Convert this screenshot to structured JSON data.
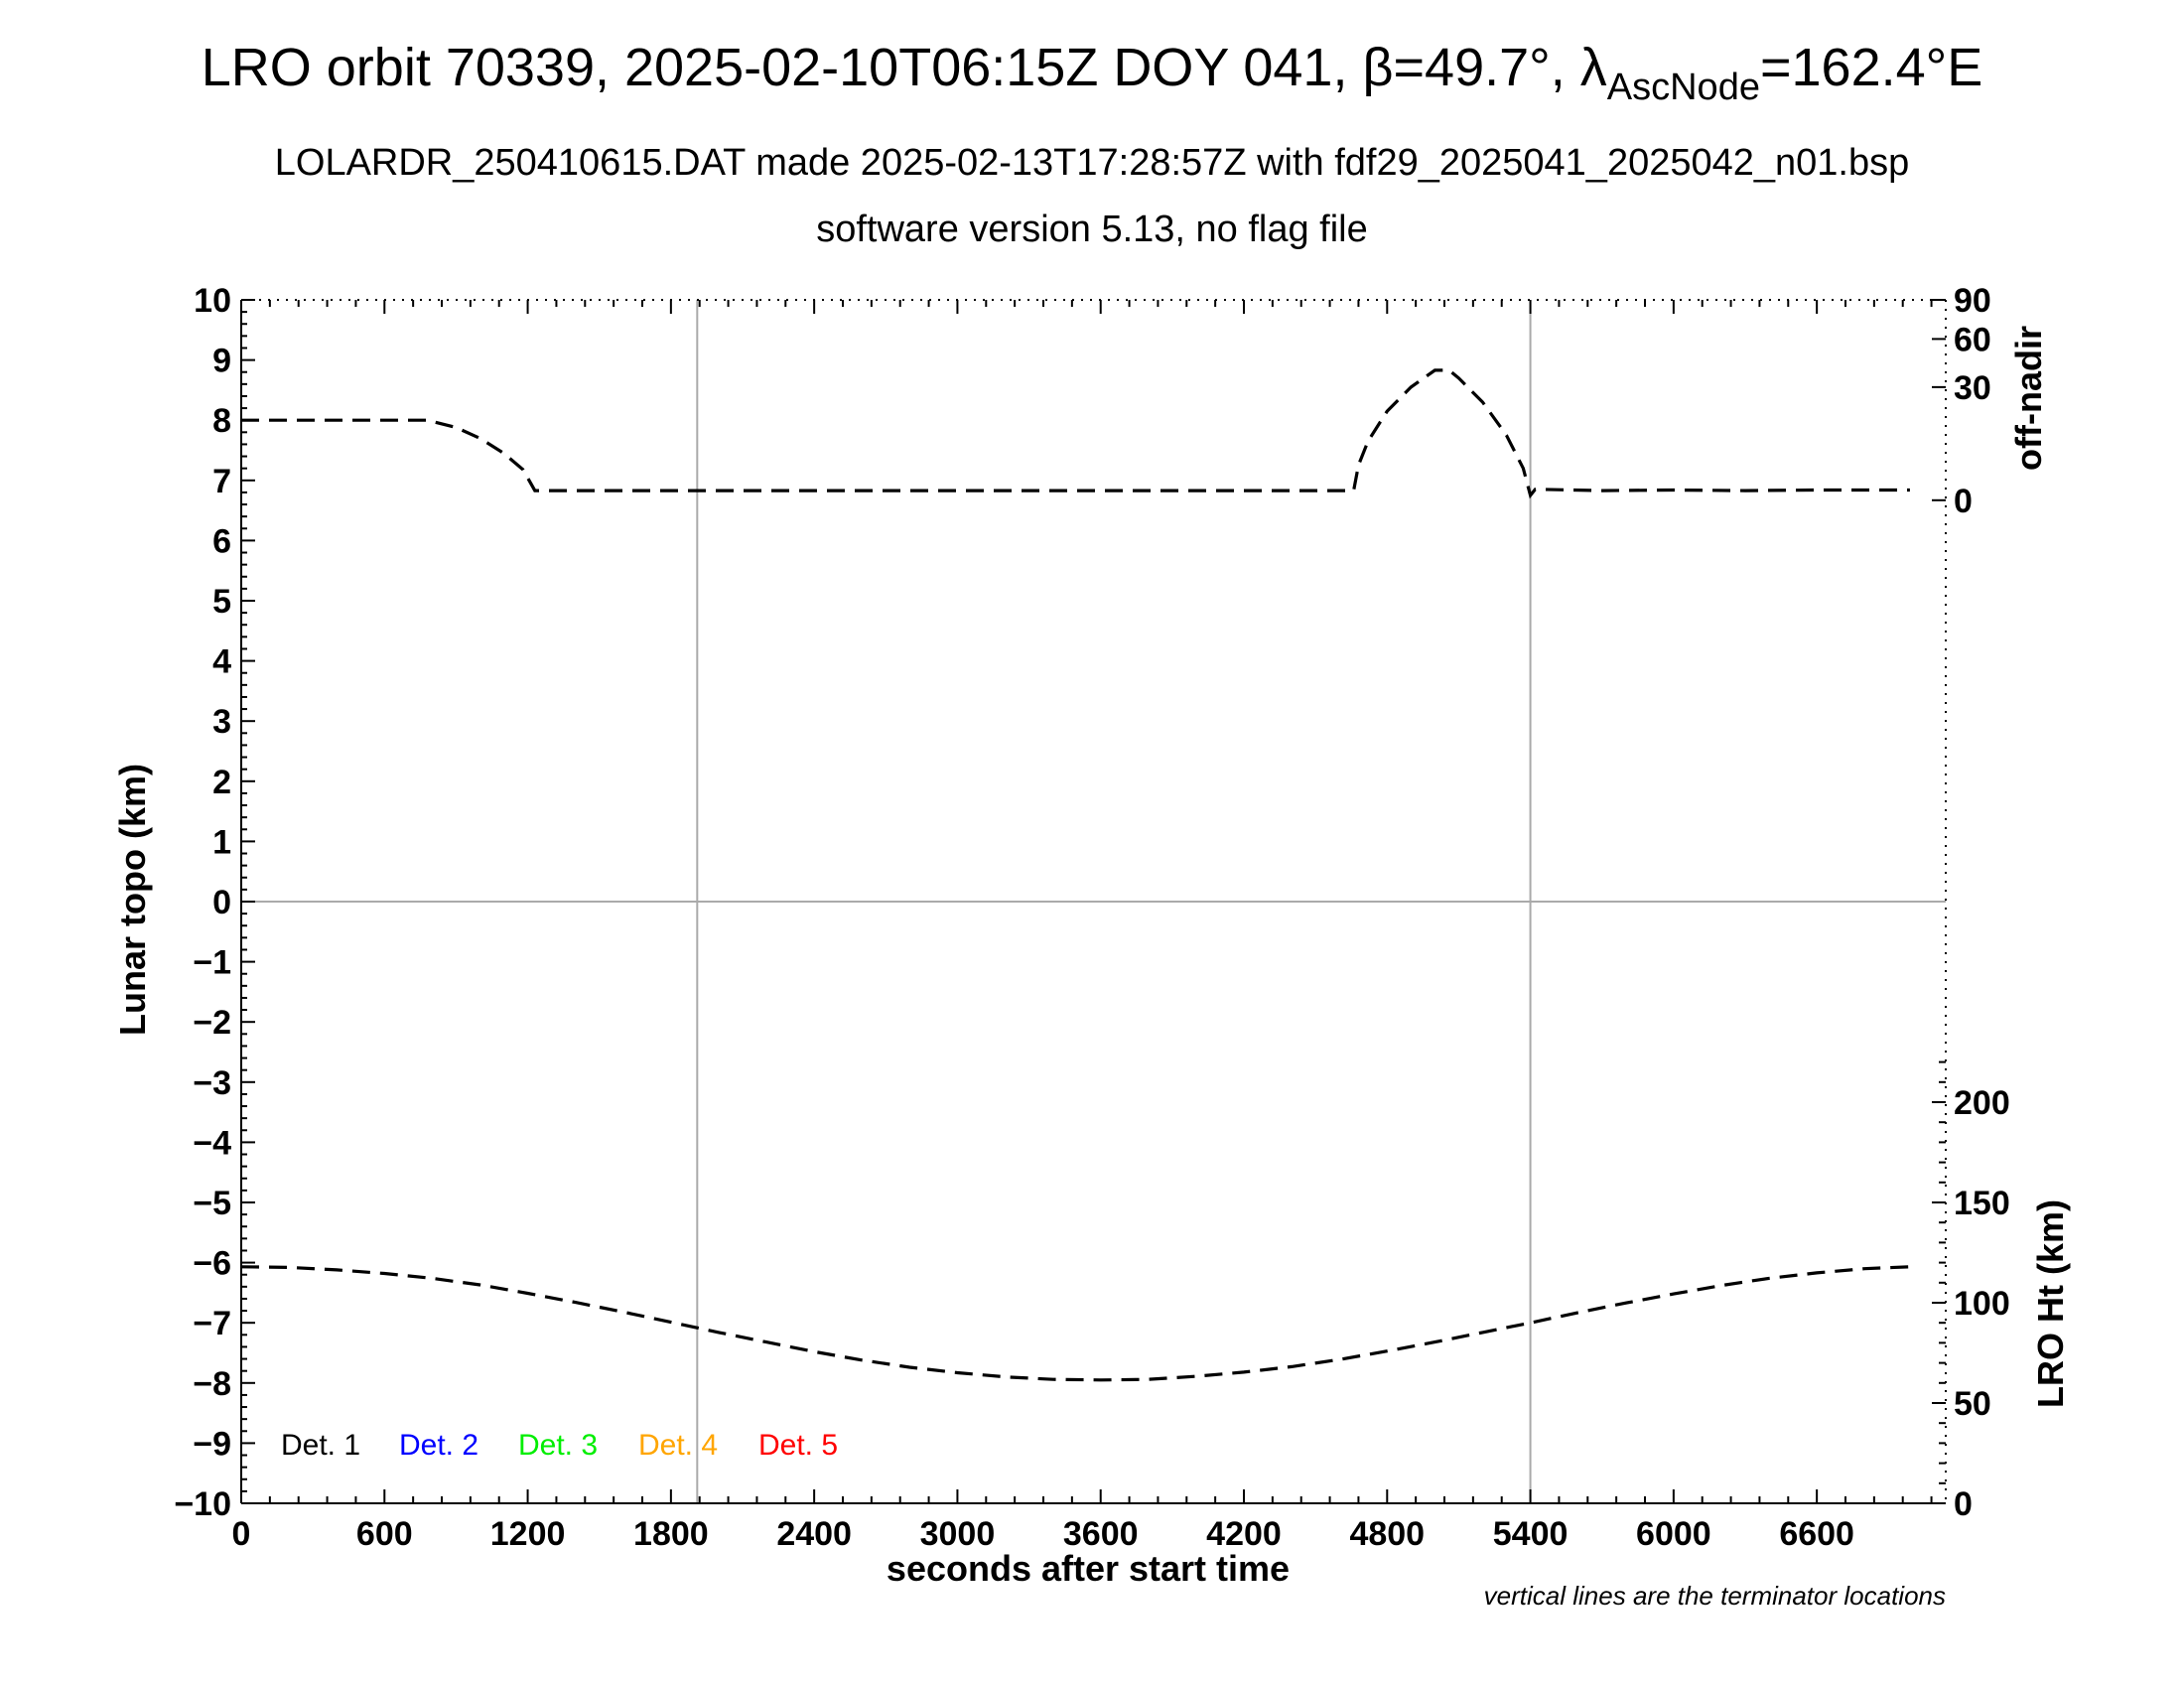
{
  "chart_data": {
    "type": "line",
    "title_parts": {
      "main": "LRO orbit 70339, 2025-02-10T06:15Z DOY 041, β=49.7°, λ",
      "subscript": "AscNode",
      "end": "=162.4°E"
    },
    "subtitle_1": "LOLARDR_250410615.DAT made 2025-02-13T17:28:57Z with fdf29_2025041_2025042_n01.bsp",
    "subtitle_2": "software version 5.13, no flag file",
    "xlabel": "seconds after start time",
    "ylabel": "Lunar topo (km)",
    "y2label_top": "off-nadir",
    "y2label_bottom": "LRO Ht (km)",
    "footnote": "vertical lines are the terminator locations",
    "xlim": [
      0,
      7140
    ],
    "ylim": [
      -10,
      10
    ],
    "x_ticks": [
      0,
      600,
      1200,
      1800,
      2400,
      3000,
      3600,
      4200,
      4800,
      5400,
      6000,
      6600
    ],
    "x_tick_labels": [
      "0",
      "600",
      "1200",
      "1800",
      "2400",
      "3000",
      "3600",
      "4200",
      "4800",
      "5400",
      "6000",
      "6600"
    ],
    "y_ticks": [
      10,
      9,
      8,
      7,
      6,
      5,
      4,
      3,
      2,
      1,
      0,
      -1,
      -2,
      -3,
      -4,
      -5,
      -6,
      -7,
      -8,
      -9,
      -10
    ],
    "y_tick_labels": [
      "10",
      "9",
      "8",
      "7",
      "6",
      "5",
      "4",
      "3",
      "2",
      "1",
      "0",
      "−1",
      "−2",
      "−3",
      "−4",
      "−5",
      "−6",
      "−7",
      "−8",
      "−9",
      "−10"
    ],
    "offnadir_ticks": [
      {
        "label": "90",
        "y": 10
      },
      {
        "label": "60",
        "y": 9.35
      },
      {
        "label": "30",
        "y": 8.55
      },
      {
        "label": "0",
        "y": 6.67
      }
    ],
    "height_ticks": [
      {
        "label": "200",
        "y": -3.33
      },
      {
        "label": "150",
        "y": -5
      },
      {
        "label": "100",
        "y": -6.67
      },
      {
        "label": "50",
        "y": -8.33
      },
      {
        "label": "0",
        "y": -10
      }
    ],
    "terminator_lines_x": [
      1910,
      5400
    ],
    "zero_line_y": 0,
    "legend": [
      {
        "label": "Det. 1",
        "color": "#000000"
      },
      {
        "label": "Det. 2",
        "color": "#0000ff"
      },
      {
        "label": "Det. 3",
        "color": "#00ee00"
      },
      {
        "label": "Det. 4",
        "color": "#ffa500"
      },
      {
        "label": "Det. 5",
        "color": "#ff0000"
      }
    ],
    "series": [
      {
        "role": "off-nadir angle (plotted on topo axis)",
        "style": "dashed",
        "color": "#000000",
        "x": [
          0,
          780,
          900,
          1000,
          1100,
          1180,
          1230,
          1300,
          2000,
          3000,
          4000,
          4660,
          4680,
          4720,
          4800,
          4900,
          5000,
          5060,
          5100,
          5200,
          5300,
          5370,
          5400,
          5420,
          5460,
          5700,
          6000,
          6300,
          6600,
          6990
        ],
        "y": [
          8.0,
          8.0,
          7.88,
          7.7,
          7.45,
          7.18,
          6.83,
          6.83,
          6.83,
          6.83,
          6.83,
          6.83,
          7.25,
          7.65,
          8.15,
          8.55,
          8.83,
          8.83,
          8.7,
          8.3,
          7.75,
          7.2,
          6.75,
          6.85,
          6.85,
          6.83,
          6.84,
          6.83,
          6.84,
          6.84
        ]
      },
      {
        "role": "LRO height (plotted on topo axis)",
        "style": "dashed",
        "color": "#000000",
        "x": [
          0,
          200,
          400,
          600,
          800,
          1000,
          1200,
          1400,
          1600,
          1800,
          2000,
          2200,
          2400,
          2600,
          2800,
          3000,
          3200,
          3400,
          3600,
          3800,
          4000,
          4200,
          4400,
          4600,
          4800,
          5000,
          5200,
          5400,
          5600,
          5800,
          6000,
          6200,
          6400,
          6600,
          6800,
          6990
        ],
        "y": [
          -6.07,
          -6.08,
          -6.12,
          -6.18,
          -6.26,
          -6.37,
          -6.51,
          -6.66,
          -6.82,
          -6.99,
          -7.16,
          -7.32,
          -7.48,
          -7.62,
          -7.74,
          -7.83,
          -7.9,
          -7.94,
          -7.95,
          -7.94,
          -7.89,
          -7.82,
          -7.73,
          -7.61,
          -7.47,
          -7.32,
          -7.16,
          -7.0,
          -6.83,
          -6.67,
          -6.52,
          -6.38,
          -6.26,
          -6.17,
          -6.1,
          -6.07
        ]
      }
    ]
  }
}
